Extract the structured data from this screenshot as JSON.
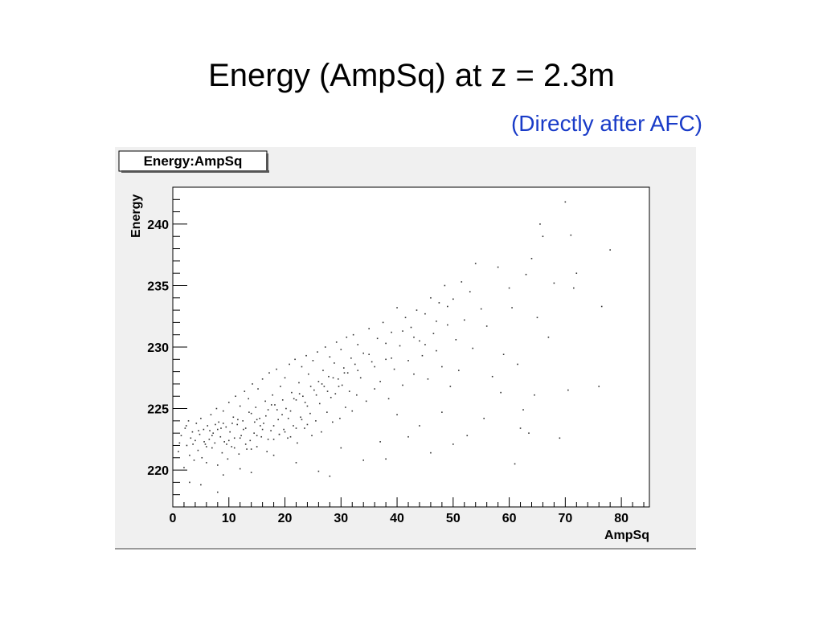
{
  "slide": {
    "title": "Energy (AmpSq) at z = 2.3m",
    "subtitle": "(Directly after AFC)"
  },
  "chart_data": {
    "type": "scatter",
    "title": "Energy:AmpSq",
    "xlabel": "AmpSq",
    "ylabel": "Energy",
    "xlim": [
      0,
      85
    ],
    "ylim": [
      217,
      243
    ],
    "xticks": [
      0,
      10,
      20,
      30,
      40,
      50,
      60,
      70,
      80
    ],
    "yticks": [
      220,
      225,
      230,
      235,
      240
    ],
    "grid": false,
    "legend": "none",
    "colors": {
      "points": "#333333",
      "frame": "#000000",
      "canvas": "#f0f0f0"
    },
    "points": [
      [
        1,
        221.5
      ],
      [
        1.5,
        222.8
      ],
      [
        2,
        220.2
      ],
      [
        2.2,
        223.4
      ],
      [
        2.5,
        222
      ],
      [
        2.8,
        224
      ],
      [
        3,
        221.2
      ],
      [
        3.2,
        222.6
      ],
      [
        3.5,
        223.1
      ],
      [
        3.8,
        220.8
      ],
      [
        4,
        222.4
      ],
      [
        4.2,
        223.8
      ],
      [
        4.5,
        221.6
      ],
      [
        4.8,
        222.9
      ],
      [
        5,
        224.2
      ],
      [
        5.2,
        221
      ],
      [
        5.5,
        223.3
      ],
      [
        5.8,
        222.1
      ],
      [
        6,
        220.6
      ],
      [
        6.2,
        223.6
      ],
      [
        6.5,
        222.5
      ],
      [
        6.8,
        224.5
      ],
      [
        7,
        221.8
      ],
      [
        7.2,
        223
      ],
      [
        7.5,
        222.2
      ],
      [
        7.8,
        225
      ],
      [
        8,
        220.4
      ],
      [
        8.2,
        223.9
      ],
      [
        8.5,
        222.7
      ],
      [
        8.8,
        221.4
      ],
      [
        9,
        224.8
      ],
      [
        9.2,
        222.3
      ],
      [
        9.5,
        223.5
      ],
      [
        9.8,
        220.9
      ],
      [
        10,
        225.5
      ],
      [
        10.2,
        223.1
      ],
      [
        10.5,
        221.9
      ],
      [
        10.8,
        224.3
      ],
      [
        11,
        222.6
      ],
      [
        11.2,
        226
      ],
      [
        11.5,
        223.7
      ],
      [
        11.8,
        221.3
      ],
      [
        12,
        225.2
      ],
      [
        12.2,
        222.8
      ],
      [
        12.5,
        224
      ],
      [
        12.8,
        226.4
      ],
      [
        13,
        223.4
      ],
      [
        13.2,
        221.7
      ],
      [
        13.5,
        225.8
      ],
      [
        13.8,
        222.4
      ],
      [
        14,
        224.6
      ],
      [
        14.2,
        227
      ],
      [
        14.5,
        223
      ],
      [
        14.8,
        225.1
      ],
      [
        15,
        221.9
      ],
      [
        15.2,
        226.6
      ],
      [
        15.5,
        224.2
      ],
      [
        15.8,
        222.7
      ],
      [
        16,
        227.4
      ],
      [
        16.2,
        223.8
      ],
      [
        16.5,
        225.6
      ],
      [
        16.8,
        221.5
      ],
      [
        17,
        224.9
      ],
      [
        17.2,
        227.9
      ],
      [
        17.5,
        223.2
      ],
      [
        17.8,
        226.1
      ],
      [
        18,
        222.5
      ],
      [
        18.2,
        225.3
      ],
      [
        18.5,
        228.2
      ],
      [
        18.8,
        224.1
      ],
      [
        19,
        222.9
      ],
      [
        19.2,
        226.8
      ],
      [
        19.5,
        224.5
      ],
      [
        19.8,
        223.3
      ],
      [
        20,
        227.5
      ],
      [
        20.2,
        225
      ],
      [
        20.5,
        222.6
      ],
      [
        20.8,
        228.6
      ],
      [
        21,
        224.8
      ],
      [
        21.2,
        226.3
      ],
      [
        21.5,
        223.6
      ],
      [
        21.8,
        229
      ],
      [
        22,
        225.7
      ],
      [
        22.2,
        222.2
      ],
      [
        22.5,
        227.1
      ],
      [
        22.8,
        224.3
      ],
      [
        23,
        228.4
      ],
      [
        23.2,
        226
      ],
      [
        23.5,
        223.4
      ],
      [
        23.8,
        229.3
      ],
      [
        24,
        225.2
      ],
      [
        24.2,
        227.8
      ],
      [
        24.5,
        224.6
      ],
      [
        24.8,
        222.8
      ],
      [
        25,
        228.9
      ],
      [
        25.2,
        226.5
      ],
      [
        25.5,
        224
      ],
      [
        25.8,
        229.6
      ],
      [
        26,
        227.2
      ],
      [
        26.2,
        225.4
      ],
      [
        26.5,
        223.1
      ],
      [
        26.8,
        228.1
      ],
      [
        27,
        226.8
      ],
      [
        27.2,
        230
      ],
      [
        27.5,
        224.7
      ],
      [
        27.8,
        227.6
      ],
      [
        28,
        229.2
      ],
      [
        28.2,
        225.9
      ],
      [
        28.5,
        223.9
      ],
      [
        28.8,
        228.7
      ],
      [
        29,
        226.2
      ],
      [
        29.2,
        230.4
      ],
      [
        29.5,
        227.4
      ],
      [
        29.8,
        224.2
      ],
      [
        30,
        229.8
      ],
      [
        30.2,
        226.9
      ],
      [
        30.5,
        228.3
      ],
      [
        30.8,
        225.1
      ],
      [
        31,
        230.8
      ],
      [
        31.2,
        227.9
      ],
      [
        31.5,
        226.4
      ],
      [
        31.8,
        229.1
      ],
      [
        32,
        224.8
      ],
      [
        32.2,
        231
      ],
      [
        32.5,
        228.6
      ],
      [
        32.8,
        226.1
      ],
      [
        33,
        230.2
      ],
      [
        33.5,
        227.5
      ],
      [
        34,
        229.5
      ],
      [
        34.5,
        225.6
      ],
      [
        35,
        231.5
      ],
      [
        35.5,
        228.8
      ],
      [
        36,
        226.6
      ],
      [
        36.5,
        230.7
      ],
      [
        37,
        227.2
      ],
      [
        37.5,
        232
      ],
      [
        38,
        229
      ],
      [
        38.5,
        225.8
      ],
      [
        39,
        231.2
      ],
      [
        39.5,
        228.2
      ],
      [
        40,
        233.2
      ],
      [
        40.5,
        230.1
      ],
      [
        41,
        226.9
      ],
      [
        41.5,
        232.4
      ],
      [
        42,
        228.9
      ],
      [
        42.5,
        231.6
      ],
      [
        43,
        227.8
      ],
      [
        43.5,
        233
      ],
      [
        44,
        230.5
      ],
      [
        44.5,
        229.3
      ],
      [
        45,
        232.7
      ],
      [
        45.5,
        227.4
      ],
      [
        46,
        234
      ],
      [
        46.5,
        231.1
      ],
      [
        47,
        229.7
      ],
      [
        47.5,
        233.6
      ],
      [
        48,
        228.4
      ],
      [
        48.5,
        235
      ],
      [
        49,
        231.8
      ],
      [
        49.5,
        226.8
      ],
      [
        50,
        233.9
      ],
      [
        50.5,
        230.6
      ],
      [
        51,
        228.1
      ],
      [
        51.5,
        235.3
      ],
      [
        52,
        232.2
      ],
      [
        52.5,
        222.8
      ],
      [
        53,
        234.5
      ],
      [
        53.5,
        229.9
      ],
      [
        54,
        236.8
      ],
      [
        55,
        233.1
      ],
      [
        55.5,
        224.2
      ],
      [
        56,
        231.7
      ],
      [
        57,
        227.6
      ],
      [
        58,
        236.5
      ],
      [
        58.5,
        226.3
      ],
      [
        59,
        229.4
      ],
      [
        60,
        234.8
      ],
      [
        60.5,
        233.2
      ],
      [
        61,
        220.5
      ],
      [
        61.5,
        228.6
      ],
      [
        62,
        223.4
      ],
      [
        62.5,
        224.9
      ],
      [
        63,
        235.9
      ],
      [
        63.5,
        223
      ],
      [
        64,
        237.2
      ],
      [
        64.5,
        226.1
      ],
      [
        65,
        232.4
      ],
      [
        65.5,
        240
      ],
      [
        66,
        239
      ],
      [
        67,
        230.8
      ],
      [
        68,
        235.2
      ],
      [
        69,
        222.6
      ],
      [
        70,
        241.8
      ],
      [
        70.5,
        226.5
      ],
      [
        71,
        239.1
      ],
      [
        71.5,
        234.8
      ],
      [
        72,
        236
      ],
      [
        76,
        226.8
      ],
      [
        76.5,
        233.3
      ],
      [
        78,
        237.9
      ],
      [
        3,
        219
      ],
      [
        5,
        218.8
      ],
      [
        8,
        218.2
      ],
      [
        9,
        219.6
      ],
      [
        12,
        220.1
      ],
      [
        14,
        219.8
      ],
      [
        18,
        221.2
      ],
      [
        22,
        220.6
      ],
      [
        26,
        219.9
      ],
      [
        28,
        219.5
      ],
      [
        30,
        221.8
      ],
      [
        34,
        220.8
      ],
      [
        37,
        222.3
      ],
      [
        38,
        220.9
      ],
      [
        40,
        224.5
      ],
      [
        42,
        222.7
      ],
      [
        44,
        223.6
      ],
      [
        46,
        221.4
      ],
      [
        48,
        224.7
      ],
      [
        50,
        222.1
      ],
      [
        1.2,
        222.2
      ],
      [
        2.4,
        223.6
      ],
      [
        3.6,
        222.1
      ],
      [
        4.6,
        223.2
      ],
      [
        5.6,
        222.3
      ],
      [
        6.6,
        223.2
      ],
      [
        7.6,
        223.7
      ],
      [
        8.6,
        223.4
      ],
      [
        9.6,
        222.1
      ],
      [
        10.6,
        223.8
      ],
      [
        11.6,
        224.1
      ],
      [
        12.6,
        223.3
      ],
      [
        13.6,
        224.7
      ],
      [
        14.6,
        223.9
      ],
      [
        15.6,
        223.6
      ],
      [
        16.6,
        224.4
      ],
      [
        17.6,
        225.3
      ],
      [
        18.6,
        224.9
      ],
      [
        19.6,
        225.7
      ],
      [
        20.6,
        224.2
      ],
      [
        21.6,
        225.8
      ],
      [
        22.6,
        226.2
      ],
      [
        23.6,
        225.5
      ],
      [
        24.6,
        226.8
      ],
      [
        25.6,
        226.1
      ],
      [
        26.6,
        227
      ],
      [
        27.6,
        226.4
      ],
      [
        28.6,
        227.5
      ],
      [
        29.6,
        226.8
      ],
      [
        30.6,
        227.9
      ],
      [
        15,
        222.8
      ],
      [
        16,
        223.3
      ],
      [
        17,
        222.5
      ],
      [
        18,
        223.6
      ],
      [
        19,
        222.9
      ],
      [
        20,
        223.1
      ],
      [
        21,
        222.7
      ],
      [
        22,
        223.4
      ],
      [
        23,
        224.1
      ],
      [
        24,
        223.7
      ],
      [
        6,
        221.9
      ],
      [
        7,
        222.8
      ],
      [
        8,
        223.3
      ],
      [
        9,
        223.8
      ],
      [
        10,
        222.4
      ],
      [
        11,
        221.8
      ],
      [
        12,
        222.6
      ],
      [
        13,
        222.1
      ],
      [
        14,
        221.7
      ],
      [
        15,
        224.1
      ],
      [
        33,
        228.1
      ],
      [
        35,
        229.4
      ],
      [
        36,
        228.4
      ],
      [
        38,
        230.3
      ],
      [
        39,
        229.1
      ],
      [
        41,
        231.3
      ],
      [
        43,
        230.8
      ],
      [
        45,
        230.2
      ],
      [
        47,
        232.1
      ],
      [
        49,
        233.3
      ]
    ]
  }
}
